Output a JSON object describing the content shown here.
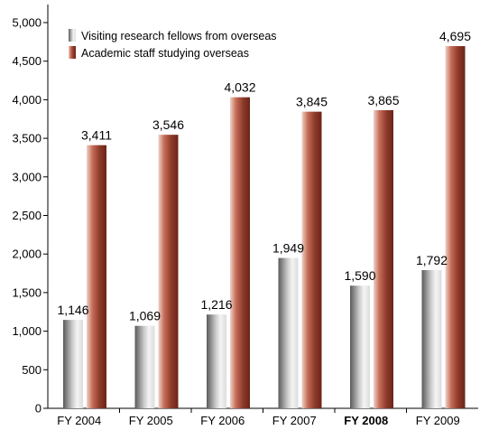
{
  "chart_data": {
    "type": "bar",
    "categories": [
      "FY 2004",
      "FY 2005",
      "FY 2006",
      "FY 2007",
      "FY 2008",
      "FY 2009"
    ],
    "series": [
      {
        "name": "Visiting research fellows from overseas",
        "values": [
          1146,
          1069,
          1216,
          1949,
          1590,
          1792
        ],
        "labels": [
          "1,146",
          "1,069",
          "1,216",
          "1,949",
          "1,590",
          "1,792"
        ],
        "color": "#9a9a9a"
      },
      {
        "name": "Academic staff studying overseas",
        "values": [
          3411,
          3546,
          4032,
          3845,
          3865,
          4695
        ],
        "labels": [
          "3,411",
          "3,546",
          "4,032",
          "3,845",
          "3,865",
          "4,695"
        ],
        "color": "#9c4a3a"
      }
    ],
    "ylim": [
      0,
      5000
    ],
    "yticks": [
      0,
      500,
      1000,
      1500,
      2000,
      2500,
      3000,
      3500,
      4000,
      4500,
      5000
    ],
    "ytick_labels": [
      "0",
      "500",
      "1,000",
      "1,500",
      "2,000",
      "2,500",
      "3,000",
      "3,500",
      "4,000",
      "4,500",
      "5,000"
    ],
    "highlighted_category": "FY 2008",
    "grid": false,
    "legend_position": "top-left"
  }
}
